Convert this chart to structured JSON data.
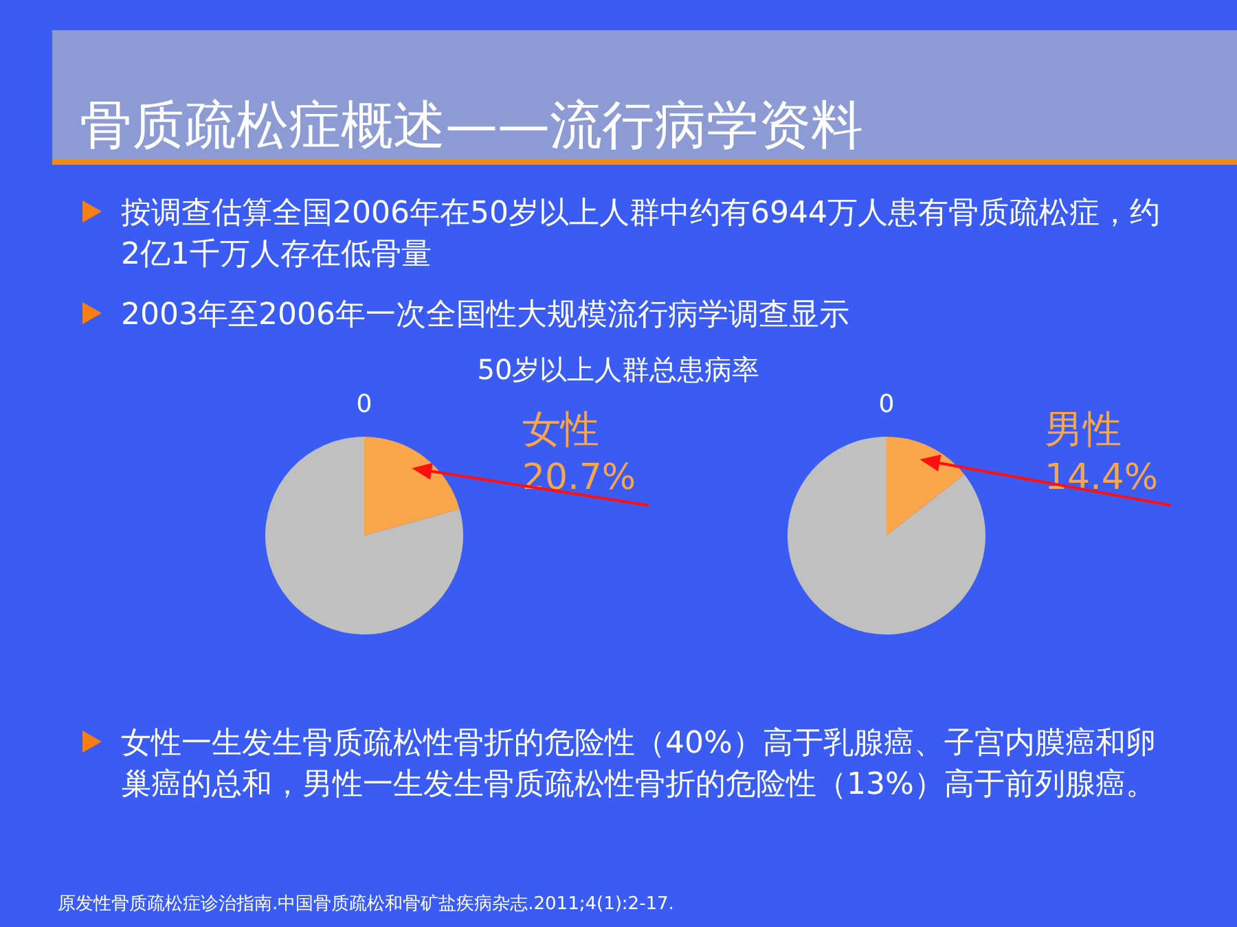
{
  "chart_data": [
    {
      "type": "other",
      "title": "骨质疏松症概述——流行病学资料",
      "annotations": [
        "按调查估算全国2006年在50岁以上人群中约有6944万人患有骨质疏松症，约2亿1千万人存在低骨量",
        "2003年至2006年一次全国性大规模流行病学调查显示",
        "女性一生发生骨质疏松性骨折的危险性（40%）高于乳腺癌、子宫内膜癌和卵巢癌的总和，男性一生发生骨质疏松性骨折的危险性（13%）高于前列腺癌。",
        "原发性骨质疏松症诊治指南.中国骨质疏松和骨矿盐疾病杂志.2011;4(1):2-17."
      ]
    },
    {
      "type": "pie",
      "title": "50岁以上人群总患病率",
      "categories": [
        null,
        "女性",
        null
      ],
      "values": [
        0,
        20.7,
        79.3
      ],
      "colors": [
        "#c0c0c0",
        "#f9a64a",
        "#c0c0c0"
      ],
      "value_labels": [
        "0",
        "20.7%",
        null
      ]
    },
    {
      "type": "pie",
      "categories": [
        null,
        "男性",
        null
      ],
      "values": [
        0,
        14.4,
        85.6
      ],
      "colors": [
        "#c0c0c0",
        "#f9a64a",
        "#c0c0c0"
      ],
      "value_labels": [
        "0",
        "14.4%",
        null
      ]
    }
  ]
}
